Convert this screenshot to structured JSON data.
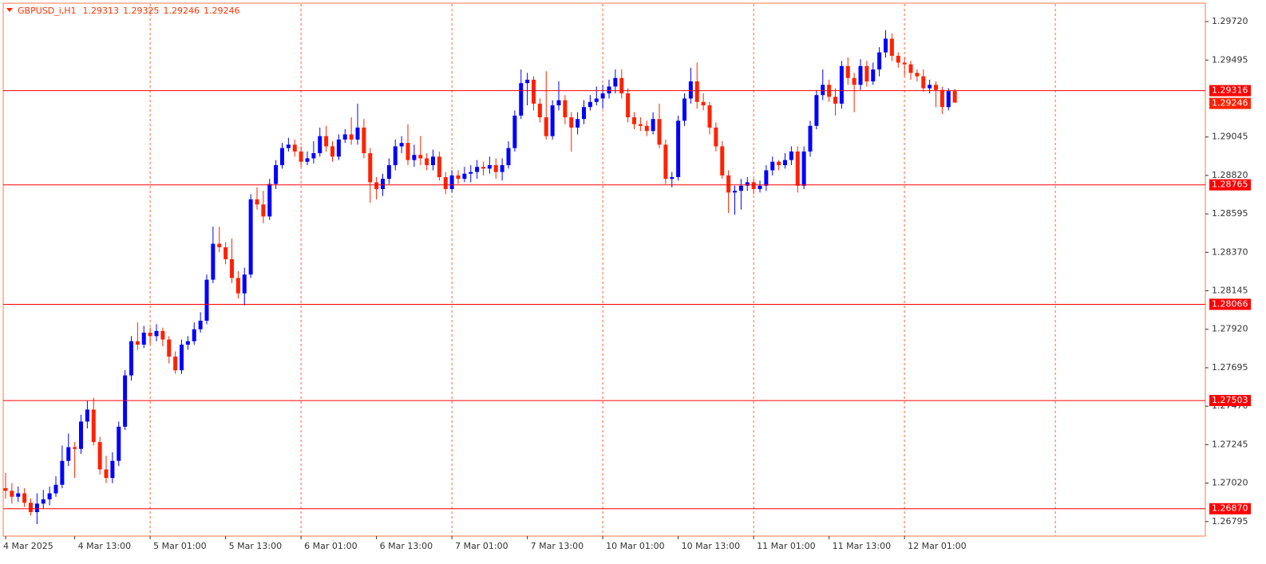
{
  "chart_data": {
    "type": "candlestick",
    "title": "GBPUSD_i,H1",
    "up_color": "#0000ff",
    "down_color": "#ff2200",
    "level_color": "#ff0000",
    "grid": true,
    "ylim": [
      1.2671,
      1.29823
    ],
    "yticks": [
      {
        "value": 1.2972,
        "label": "1.29720"
      },
      {
        "value": 1.29495,
        "label": "1.29495"
      },
      {
        "value": 1.29045,
        "label": "1.29045"
      },
      {
        "value": 1.2882,
        "label": "1.28820"
      },
      {
        "value": 1.28595,
        "label": "1.28595"
      },
      {
        "value": 1.2837,
        "label": "1.28370"
      },
      {
        "value": 1.28145,
        "label": "1.28145"
      },
      {
        "value": 1.2792,
        "label": "1.27920"
      },
      {
        "value": 1.27695,
        "label": "1.27695"
      },
      {
        "value": 1.2747,
        "label": "1.27470"
      },
      {
        "value": 1.27245,
        "label": "1.27245"
      },
      {
        "value": 1.2702,
        "label": "1.27020"
      },
      {
        "value": 1.26795,
        "label": "1.26795"
      }
    ],
    "levels": [
      {
        "value": 1.29316,
        "label": "1.29316"
      },
      {
        "value": 1.28765,
        "label": "1.28765"
      },
      {
        "value": 1.28066,
        "label": "1.28066"
      },
      {
        "value": 1.27503,
        "label": "1.27503"
      },
      {
        "value": 1.2687,
        "label": "1.26870"
      }
    ],
    "categories": [
      "4 Mar 2025",
      null,
      null,
      null,
      null,
      null,
      null,
      null,
      null,
      null,
      null,
      "4 Mar 13:00",
      null,
      null,
      null,
      null,
      null,
      null,
      null,
      null,
      null,
      null,
      null,
      "5 Mar 01:00",
      null,
      null,
      null,
      null,
      null,
      null,
      null,
      null,
      null,
      null,
      null,
      "5 Mar 13:00",
      null,
      null,
      null,
      null,
      null,
      null,
      null,
      null,
      null,
      null,
      null,
      "6 Mar 01:00",
      null,
      null,
      null,
      null,
      null,
      null,
      null,
      null,
      null,
      null,
      null,
      "6 Mar 13:00",
      null,
      null,
      null,
      null,
      null,
      null,
      null,
      null,
      null,
      null,
      null,
      "7 Mar 01:00",
      null,
      null,
      null,
      null,
      null,
      null,
      null,
      null,
      null,
      null,
      null,
      "7 Mar 13:00",
      null,
      null,
      null,
      null,
      null,
      null,
      null,
      null,
      null,
      null,
      null,
      "10 Mar 01:00",
      null,
      null,
      null,
      null,
      null,
      null,
      null,
      null,
      null,
      null,
      null,
      "10 Mar 13:00",
      null,
      null,
      null,
      null,
      null,
      null,
      null,
      null,
      null,
      null,
      null,
      "11 Mar 01:00",
      null,
      null,
      null,
      null,
      null,
      null,
      null,
      null,
      null,
      null,
      null,
      "11 Mar 13:00",
      null,
      null,
      null,
      null,
      null,
      null,
      null,
      null,
      null,
      null,
      null,
      "12 Mar 01:00",
      null,
      null,
      null,
      null,
      null,
      null,
      null,
      null
    ],
    "open": [
      1.2699,
      1.26975,
      1.2694,
      1.2696,
      1.26905,
      1.2685,
      1.269,
      1.26925,
      1.2696,
      1.2701,
      1.2715,
      1.2723,
      1.2722,
      1.2738,
      1.2745,
      1.2726,
      1.271,
      1.2705,
      1.2715,
      1.2735,
      1.2765,
      1.2785,
      1.2783,
      1.279,
      1.2788,
      1.2791,
      1.2786,
      1.2776,
      1.2768,
      1.2783,
      1.2785,
      1.2792,
      1.2797,
      1.2821,
      1.2842,
      1.284,
      1.2833,
      1.2822,
      1.2813,
      1.2824,
      1.2868,
      1.2865,
      1.2858,
      1.2877,
      1.2888,
      1.2898,
      1.29,
      1.2896,
      1.289,
      1.2892,
      1.2895,
      1.2905,
      1.2899,
      1.2893,
      1.2903,
      1.2906,
      1.2903,
      1.291,
      1.2895,
      1.2878,
      1.2874,
      1.288,
      1.2888,
      1.2899,
      1.2901,
      1.2891,
      1.2894,
      1.2892,
      1.2888,
      1.2893,
      1.2881,
      1.2874,
      1.2882,
      1.288,
      1.2883,
      1.2884,
      1.2887,
      1.2886,
      1.2888,
      1.2884,
      1.2888,
      1.2898,
      1.2917,
      1.2936,
      1.2938,
      1.2924,
      1.2916,
      1.2905,
      1.2923,
      1.2926,
      1.2916,
      1.291,
      1.2915,
      1.2922,
      1.2925,
      1.2927,
      1.293,
      1.2934,
      1.2939,
      1.293,
      1.2916,
      1.2912,
      1.2911,
      1.2908,
      1.2915,
      1.29,
      1.288,
      1.2881,
      1.2914,
      1.2927,
      1.2937,
      1.2925,
      1.2923,
      1.291,
      1.2899,
      1.2882,
      1.2872,
      1.2873,
      1.2876,
      1.2878,
      1.2874,
      1.2876,
      1.2885,
      1.289,
      1.2888,
      1.2891,
      1.2896,
      1.2876,
      1.2896,
      1.2911,
      1.2929,
      1.2935,
      1.2928,
      1.2924,
      1.2946,
      1.2939,
      1.2935,
      1.2946,
      1.2937,
      1.2944,
      1.2954,
      1.2962,
      1.2952,
      1.2948,
      1.2947,
      1.2942,
      1.294,
      1.2933,
      1.2935,
      1.2932,
      1.2922,
      1.29313
    ],
    "high": [
      1.2708,
      1.2702,
      1.27,
      1.2699,
      1.2693,
      1.2696,
      1.2698,
      1.27,
      1.2706,
      1.2724,
      1.2731,
      1.2726,
      1.2742,
      1.275,
      1.2752,
      1.2729,
      1.2718,
      1.272,
      1.2738,
      1.2768,
      1.2788,
      1.2796,
      1.2794,
      1.2793,
      1.2795,
      1.2793,
      1.2788,
      1.2779,
      1.2786,
      1.2788,
      1.2796,
      1.2802,
      1.2824,
      1.2852,
      1.2852,
      1.2843,
      1.2845,
      1.2826,
      1.2828,
      1.2871,
      1.2875,
      1.2873,
      1.288,
      1.2891,
      1.2901,
      1.2904,
      1.2903,
      1.2899,
      1.2896,
      1.2902,
      1.291,
      1.2911,
      1.2902,
      1.2906,
      1.2909,
      1.2916,
      1.2924,
      1.2915,
      1.2898,
      1.2881,
      1.2883,
      1.2892,
      1.2903,
      1.2905,
      1.2912,
      1.29,
      1.2905,
      1.2895,
      1.2897,
      1.2896,
      1.2884,
      1.2885,
      1.2885,
      1.2887,
      1.2888,
      1.2891,
      1.289,
      1.2893,
      1.2892,
      1.2892,
      1.2902,
      1.292,
      1.2944,
      1.2942,
      1.294,
      1.2927,
      1.2943,
      1.2926,
      1.2937,
      1.2929,
      1.2919,
      1.2919,
      1.2926,
      1.2929,
      1.2934,
      1.2935,
      1.2938,
      1.2944,
      1.2944,
      1.2933,
      1.2919,
      1.2916,
      1.2914,
      1.2919,
      1.2924,
      1.2903,
      1.2884,
      1.2917,
      1.293,
      1.2945,
      1.2948,
      1.293,
      1.2925,
      1.2913,
      1.2902,
      1.2885,
      1.2876,
      1.288,
      1.2881,
      1.288,
      1.2879,
      1.2888,
      1.2893,
      1.2891,
      1.2895,
      1.2899,
      1.2899,
      1.2899,
      1.2914,
      1.2932,
      1.2944,
      1.2938,
      1.2933,
      1.2949,
      1.2951,
      1.2942,
      1.295,
      1.2949,
      1.2948,
      1.2957,
      1.2967,
      1.2965,
      1.2954,
      1.2951,
      1.2949,
      1.2944,
      1.2944,
      1.2938,
      1.2937,
      1.2934,
      1.2933,
      1.29325
    ],
    "low": [
      1.2693,
      1.269,
      1.2691,
      1.2688,
      1.2683,
      1.2678,
      1.2687,
      1.2689,
      1.2694,
      1.2699,
      1.2712,
      1.2705,
      1.2719,
      1.2734,
      1.2724,
      1.2707,
      1.2702,
      1.2702,
      1.2712,
      1.2733,
      1.2762,
      1.278,
      1.2781,
      1.2783,
      1.2785,
      1.2782,
      1.2772,
      1.2766,
      1.2766,
      1.278,
      1.2783,
      1.279,
      1.2795,
      1.2819,
      1.2837,
      1.283,
      1.2819,
      1.281,
      1.2806,
      1.2822,
      1.2862,
      1.2854,
      1.2856,
      1.2874,
      1.2886,
      1.2896,
      1.2893,
      1.2887,
      1.2888,
      1.2889,
      1.2893,
      1.2896,
      1.289,
      1.2891,
      1.2901,
      1.29,
      1.29,
      1.2892,
      1.2866,
      1.2868,
      1.287,
      1.2877,
      1.2885,
      1.2895,
      1.2888,
      1.2887,
      1.2888,
      1.2885,
      1.2885,
      1.2879,
      1.2871,
      1.2872,
      1.2877,
      1.2878,
      1.2878,
      1.288,
      1.2882,
      1.2883,
      1.288,
      1.2879,
      1.2886,
      1.2896,
      1.2915,
      1.2923,
      1.292,
      1.2913,
      1.2903,
      1.2903,
      1.292,
      1.2912,
      1.2896,
      1.2906,
      1.2912,
      1.292,
      1.2923,
      1.2921,
      1.2927,
      1.293,
      1.2927,
      1.2913,
      1.2909,
      1.2908,
      1.2905,
      1.2906,
      1.2898,
      1.2877,
      1.2875,
      1.2879,
      1.2911,
      1.2924,
      1.2921,
      1.292,
      1.2906,
      1.2896,
      1.288,
      1.286,
      1.2859,
      1.2862,
      1.2873,
      1.2871,
      1.2872,
      1.2873,
      1.2882,
      1.2885,
      1.2886,
      1.2888,
      1.2872,
      1.2874,
      1.2893,
      1.2909,
      1.2926,
      1.2925,
      1.2917,
      1.2921,
      1.2935,
      1.2919,
      1.2932,
      1.2934,
      1.2935,
      1.294,
      1.2951,
      1.2949,
      1.2945,
      1.294,
      1.2938,
      1.2937,
      1.2931,
      1.293,
      1.2922,
      1.2918,
      1.292,
      1.29246
    ],
    "close": [
      1.26975,
      1.2694,
      1.2696,
      1.26905,
      1.2685,
      1.269,
      1.26925,
      1.2696,
      1.2701,
      1.2715,
      1.2723,
      1.2722,
      1.2738,
      1.2745,
      1.2726,
      1.271,
      1.2705,
      1.2715,
      1.2735,
      1.2765,
      1.2785,
      1.2783,
      1.279,
      1.2788,
      1.2791,
      1.2786,
      1.2776,
      1.2768,
      1.2783,
      1.2785,
      1.2792,
      1.2797,
      1.2821,
      1.2842,
      1.284,
      1.2833,
      1.2822,
      1.2813,
      1.2824,
      1.2868,
      1.2865,
      1.2858,
      1.2877,
      1.2888,
      1.2898,
      1.29,
      1.2896,
      1.289,
      1.2892,
      1.2895,
      1.2905,
      1.2899,
      1.2893,
      1.2903,
      1.2906,
      1.2903,
      1.291,
      1.2895,
      1.2878,
      1.2874,
      1.288,
      1.2888,
      1.2899,
      1.2901,
      1.2891,
      1.2894,
      1.2892,
      1.2888,
      1.2893,
      1.2881,
      1.2874,
      1.2882,
      1.288,
      1.2883,
      1.2884,
      1.2887,
      1.2886,
      1.2888,
      1.2884,
      1.2888,
      1.2898,
      1.2917,
      1.2936,
      1.2938,
      1.2924,
      1.2916,
      1.2905,
      1.2923,
      1.2926,
      1.2916,
      1.291,
      1.2915,
      1.2922,
      1.2925,
      1.2927,
      1.293,
      1.2934,
      1.2939,
      1.293,
      1.2916,
      1.2912,
      1.2911,
      1.2908,
      1.2915,
      1.29,
      1.288,
      1.2881,
      1.2914,
      1.2927,
      1.2937,
      1.2925,
      1.2923,
      1.291,
      1.2899,
      1.2882,
      1.2872,
      1.2873,
      1.2876,
      1.2878,
      1.2874,
      1.2876,
      1.2885,
      1.289,
      1.2888,
      1.2891,
      1.2896,
      1.2876,
      1.2896,
      1.2911,
      1.2929,
      1.2935,
      1.2928,
      1.2924,
      1.2946,
      1.2939,
      1.2935,
      1.2946,
      1.2937,
      1.2944,
      1.2954,
      1.2962,
      1.2952,
      1.2948,
      1.2947,
      1.2942,
      1.294,
      1.2933,
      1.2935,
      1.2932,
      1.2922,
      1.29313,
      1.29246
    ]
  }
}
